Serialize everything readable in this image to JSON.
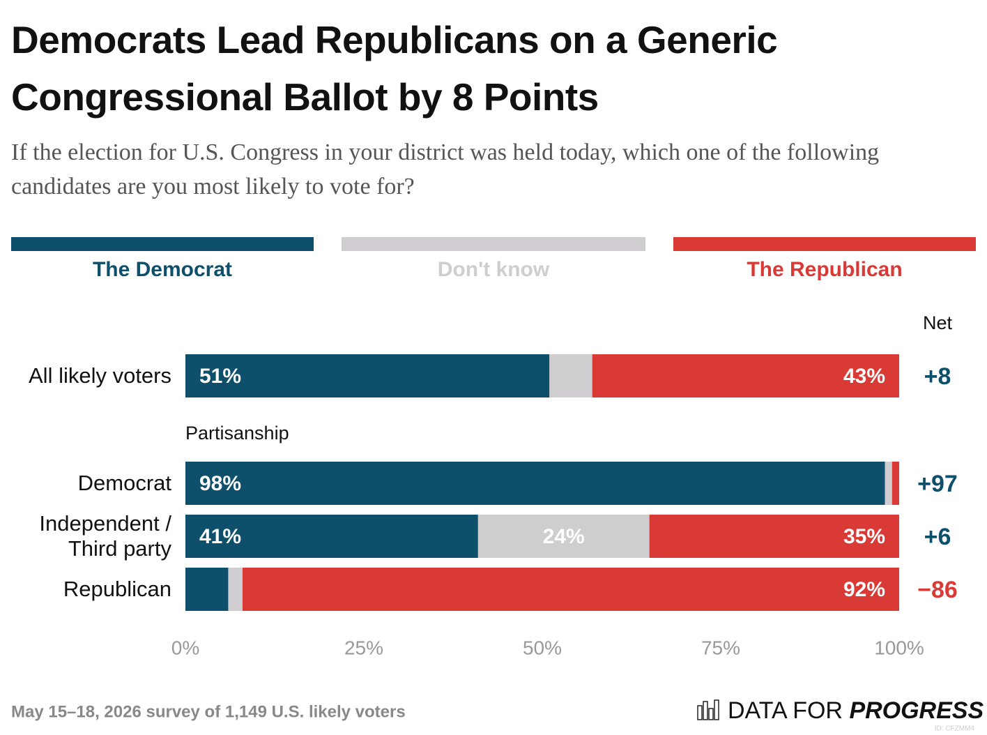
{
  "chart_data": {
    "type": "stacked-bar-horizontal",
    "title": "Democrats Lead Republicans on a Generic Congressional Ballot by 8 Points",
    "subtitle": "If the election for U.S. Congress in your district was held today, which one of the following candidates are you most likely to vote for?",
    "categories": [
      "All likely voters",
      "Democrat",
      "Independent / Third party",
      "Republican"
    ],
    "group_label": "Partisanship",
    "series": [
      {
        "name": "The Democrat",
        "color": "#0e4f6b",
        "values": [
          51,
          98,
          41,
          6
        ],
        "value_labels": [
          "51%",
          "98%",
          "41%",
          null
        ]
      },
      {
        "name": "Don't know",
        "color": "#d0cdd0",
        "values": [
          6,
          1,
          24,
          2
        ],
        "value_labels": [
          null,
          null,
          "24%",
          null
        ]
      },
      {
        "name": "The Republican",
        "color": "#d93a35",
        "values": [
          43,
          1,
          35,
          92
        ],
        "value_labels": [
          "43%",
          null,
          "35%",
          "92%"
        ]
      }
    ],
    "net": {
      "title": "Net",
      "values": [
        8,
        97,
        6,
        -86
      ],
      "value_labels": [
        "+8",
        "+97",
        "+6",
        "−86"
      ]
    },
    "xlim": [
      0,
      100
    ],
    "xticks": [
      {
        "value": 0,
        "label": "0%"
      },
      {
        "value": 25,
        "label": "25%"
      },
      {
        "value": 50,
        "label": "50%"
      },
      {
        "value": 75,
        "label": "75%"
      },
      {
        "value": 100,
        "label": "100%"
      }
    ],
    "grid": false,
    "legend": "top",
    "footnote": "May 15–18, 2026 survey of 1,149 U.S. likely voters",
    "logo": [
      "DATA FOR",
      "PROGRESS"
    ],
    "id_label": "ID: CFZMM4"
  }
}
